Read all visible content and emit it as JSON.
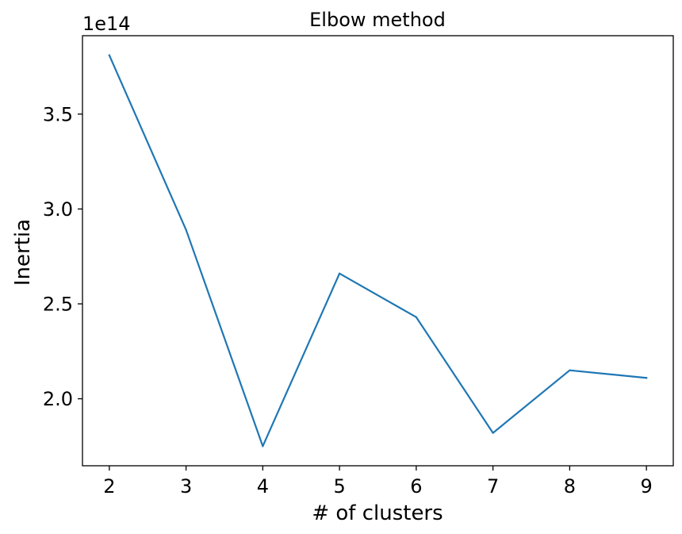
{
  "chart_data": {
    "type": "line",
    "title": "Elbow method",
    "xlabel": "# of clusters",
    "ylabel": "Inertia",
    "y_offset_label": "1e14",
    "x": [
      2,
      3,
      4,
      5,
      6,
      7,
      8,
      9
    ],
    "series": [
      {
        "values": [
          3.81,
          2.89,
          1.75,
          2.66,
          2.43,
          1.82,
          2.15,
          2.11
        ],
        "color": "#1f77b4"
      }
    ],
    "x_ticks": [
      2,
      3,
      4,
      5,
      6,
      7,
      8,
      9
    ],
    "x_tick_labels": [
      "2",
      "3",
      "4",
      "5",
      "6",
      "7",
      "8",
      "9"
    ],
    "y_ticks": [
      2.0,
      2.5,
      3.0,
      3.5
    ],
    "y_tick_labels": [
      "2.0",
      "2.5",
      "3.0",
      "3.5"
    ],
    "xlim": [
      1.65,
      9.35
    ],
    "ylim": [
      1.647,
      3.913
    ],
    "grid": false,
    "legend": "none"
  }
}
